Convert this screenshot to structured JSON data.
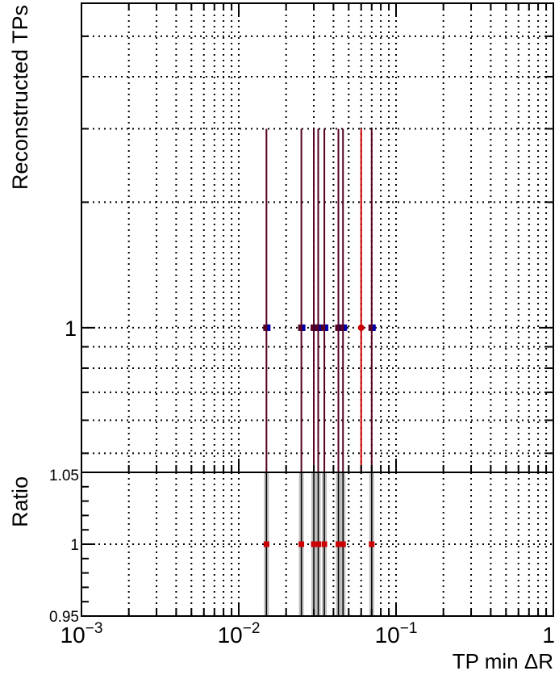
{
  "chart_data": {
    "type": "scatter",
    "x_scale": "log",
    "xlim": [
      0.001,
      1
    ],
    "xlabel": "TP min  ΔR",
    "x_ticks": [
      {
        "value": 0.001,
        "base": "10",
        "exp": "−3"
      },
      {
        "value": 0.01,
        "base": "10",
        "exp": "−2"
      },
      {
        "value": 0.1,
        "base": "10",
        "exp": "−1"
      },
      {
        "value": 1,
        "base": "1",
        "exp": ""
      }
    ],
    "grid": true,
    "colors": {
      "series_a": "#cc0000",
      "series_b": "#0000aa",
      "marker_dark": "#550022",
      "ratio_band": "#bfbfbf"
    },
    "panels": [
      {
        "name": "main",
        "ylabel": "Reconstructed TPs",
        "y_scale": "log",
        "ylim": [
          0.45,
          6.0
        ],
        "y_ticks": [
          {
            "value": 1,
            "label": "1"
          }
        ],
        "series": [
          {
            "x": [
              0.015,
              0.025,
              0.03,
              0.032,
              0.035,
              0.043,
              0.046,
              0.07
            ],
            "y": [
              1,
              1,
              1,
              1,
              1,
              1,
              1,
              1
            ],
            "yerr_high": [
              2,
              2,
              2,
              2,
              2,
              2,
              2,
              2
            ]
          },
          {
            "x": [
              0.06
            ],
            "y": [
              1
            ],
            "yerr_high": [
              2
            ]
          }
        ]
      },
      {
        "name": "ratio",
        "ylabel": "Ratio",
        "y_scale": "linear",
        "ylim": [
          0.95,
          1.05
        ],
        "y_ticks": [
          {
            "value": 0.95,
            "label": "0.95"
          },
          {
            "value": 1,
            "label": "1"
          },
          {
            "value": 1.05,
            "label": "1.05"
          }
        ],
        "points": [
          {
            "x": 0.015,
            "y": 1
          },
          {
            "x": 0.025,
            "y": 1
          },
          {
            "x": 0.03,
            "y": 1
          },
          {
            "x": 0.032,
            "y": 1
          },
          {
            "x": 0.035,
            "y": 1
          },
          {
            "x": 0.043,
            "y": 1
          },
          {
            "x": 0.046,
            "y": 1
          },
          {
            "x": 0.07,
            "y": 1
          }
        ]
      }
    ]
  }
}
